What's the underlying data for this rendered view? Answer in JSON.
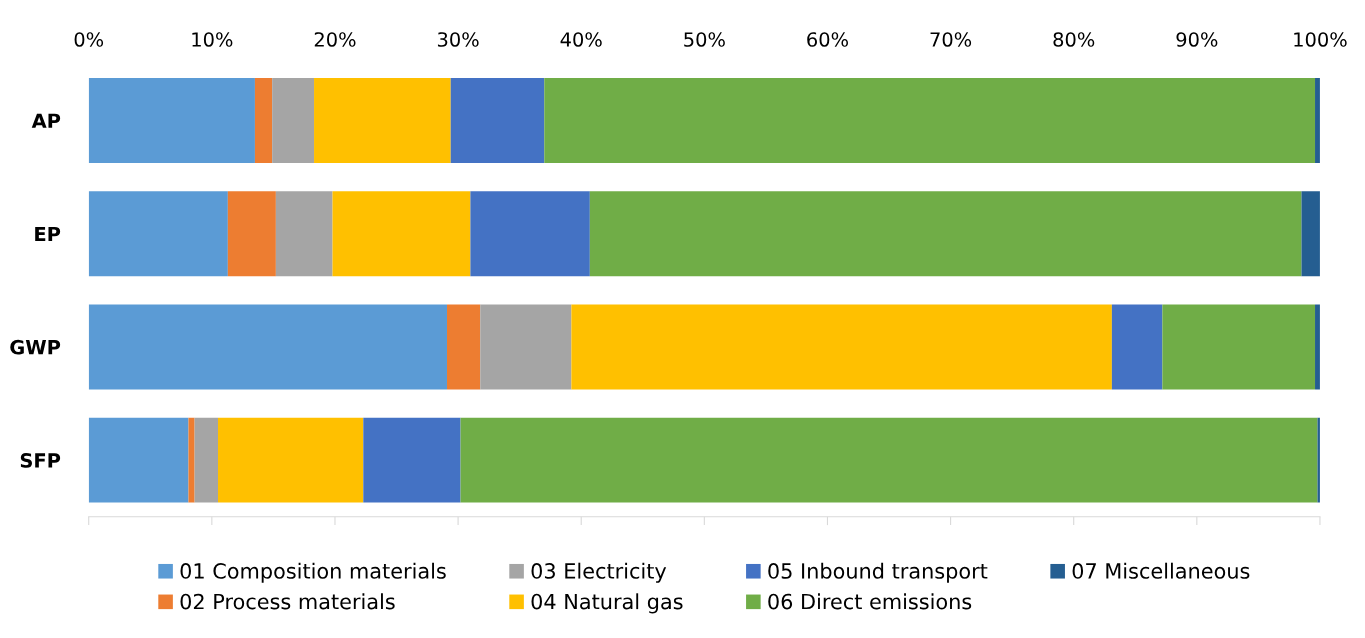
{
  "chart_data": {
    "type": "bar",
    "orientation": "horizontal",
    "stacked": true,
    "categories": [
      "AP",
      "EP",
      "GWP",
      "SFP"
    ],
    "series": [
      {
        "name": "01 Composition materials",
        "color": "#5b9bd5",
        "values": [
          13.5,
          11.3,
          29.1,
          8.1
        ]
      },
      {
        "name": "02 Process materials",
        "color": "#ed7d31",
        "values": [
          1.4,
          3.9,
          2.7,
          0.5
        ]
      },
      {
        "name": "03 Electricity",
        "color": "#a5a5a5",
        "values": [
          3.4,
          4.6,
          7.4,
          1.9
        ]
      },
      {
        "name": "04 Natural gas",
        "color": "#ffc000",
        "values": [
          11.1,
          11.2,
          43.9,
          11.8
        ]
      },
      {
        "name": "05 Inbound transport",
        "color": "#4472c4",
        "values": [
          7.6,
          9.7,
          4.1,
          7.9
        ]
      },
      {
        "name": "06 Direct emissions",
        "color": "#70ad47",
        "values": [
          62.6,
          57.8,
          12.4,
          69.6
        ]
      },
      {
        "name": "07 Miscellaneous",
        "color": "#255e91",
        "values": [
          0.4,
          1.5,
          0.4,
          0.2
        ]
      }
    ],
    "xlim": [
      0,
      100
    ],
    "xticks": [
      {
        "value": 0,
        "label": "0%"
      },
      {
        "value": 10,
        "label": "10%"
      },
      {
        "value": 20,
        "label": "20%"
      },
      {
        "value": 30,
        "label": "30%"
      },
      {
        "value": 40,
        "label": "40%"
      },
      {
        "value": 50,
        "label": "50%"
      },
      {
        "value": 60,
        "label": "60%"
      },
      {
        "value": 70,
        "label": "70%"
      },
      {
        "value": 80,
        "label": "80%"
      },
      {
        "value": 90,
        "label": "90%"
      },
      {
        "value": 100,
        "label": "100%"
      }
    ],
    "grid": false,
    "legend": "bottom"
  }
}
